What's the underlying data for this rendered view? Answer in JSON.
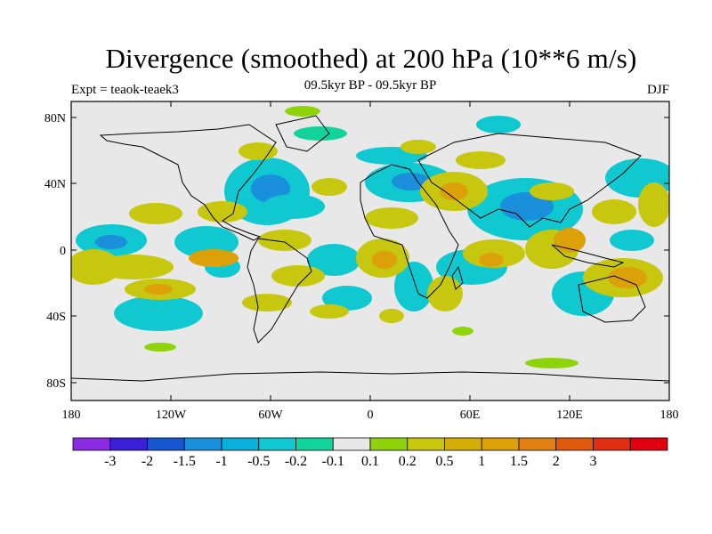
{
  "title": "Divergence (smoothed) at 200 hPa (10**6 m/s)",
  "left_label": "Expt = teaok-teaek3",
  "center_label": "09.5kyr BP - 09.5kyr BP",
  "right_label": "DJF",
  "lat_ticks": [
    "80N",
    "40N",
    "0",
    "40S",
    "80S"
  ],
  "lon_ticks": [
    "180",
    "120W",
    "60W",
    "0",
    "60E",
    "120E",
    "180"
  ],
  "colorbar": {
    "colors": [
      "#8a2be2",
      "#3a1fd6",
      "#1756d1",
      "#1a8fdc",
      "#08b0da",
      "#10c9d0",
      "#12d49a",
      "#e8e8e8",
      "#8fd30b",
      "#c7c710",
      "#d4ae06",
      "#dca008",
      "#e18010",
      "#df5a0c",
      "#e02e14",
      "#e00010"
    ],
    "labels": [
      "-3",
      "-2",
      "-1.5",
      "-1",
      "-0.5",
      "-0.2",
      "-0.1",
      "0.1",
      "0.2",
      "0.5",
      "1",
      "1.5",
      "2",
      "3"
    ]
  }
}
